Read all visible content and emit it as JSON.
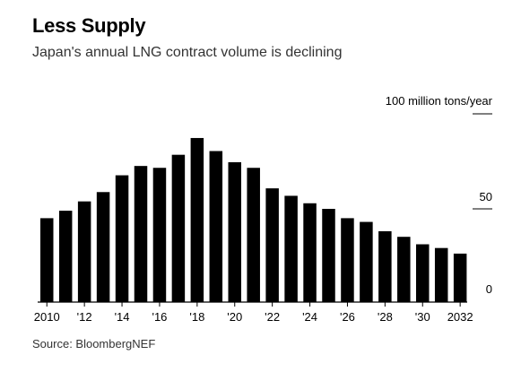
{
  "header": {
    "title": "Less Supply",
    "subtitle": "Japan's annual LNG contract volume is declining"
  },
  "footer": {
    "source": "Source: BloombergNEF"
  },
  "colors": {
    "bars": "#000000",
    "gridline": "#000000",
    "text": "#000000",
    "muted_text": "#333333"
  },
  "chart_data": {
    "type": "bar",
    "title": "Less Supply",
    "subtitle": "Japan's annual LNG contract volume is declining",
    "xlabel": "",
    "ylabel": "100 million tons/year",
    "ylim": [
      0,
      100
    ],
    "y_ticks": [
      0,
      50
    ],
    "grid": false,
    "legend": "none",
    "categories": [
      "2010",
      "2011",
      "2012",
      "2013",
      "2014",
      "2015",
      "2016",
      "2017",
      "2018",
      "2019",
      "2020",
      "2021",
      "2022",
      "2023",
      "2024",
      "2025",
      "2026",
      "2027",
      "2028",
      "2029",
      "2030",
      "2031",
      "2032"
    ],
    "x_tick_labels": [
      "2010",
      "",
      "'12",
      "",
      "'14",
      "",
      "'16",
      "",
      "'18",
      "",
      "'20",
      "",
      "'22",
      "",
      "'24",
      "",
      "'26",
      "",
      "'28",
      "",
      "'30",
      "",
      "2032"
    ],
    "values": [
      45,
      49,
      54,
      59,
      68,
      73,
      72,
      79,
      88,
      81,
      75,
      72,
      61,
      57,
      53,
      50,
      45,
      43,
      38,
      35,
      31,
      29,
      26
    ]
  }
}
